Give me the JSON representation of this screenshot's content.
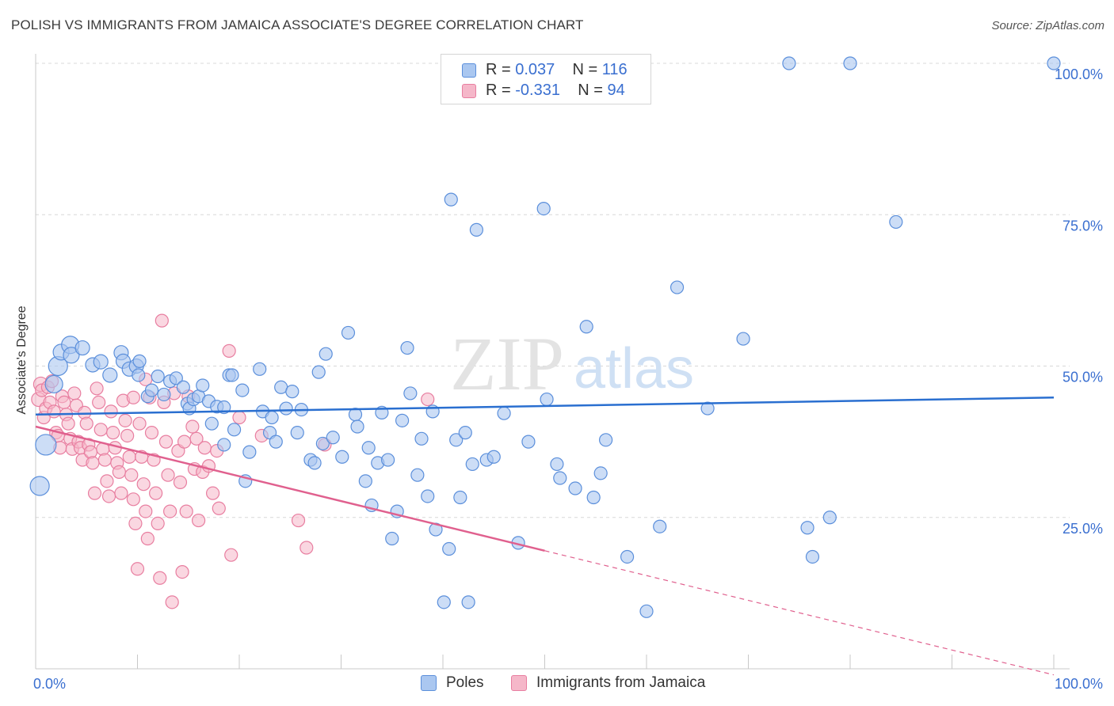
{
  "title": "POLISH VS IMMIGRANTS FROM JAMAICA ASSOCIATE'S DEGREE CORRELATION CHART",
  "source": "Source: ZipAtlas.com",
  "watermark": {
    "zip": "ZIP",
    "atlas": "atlas"
  },
  "colors": {
    "blue_fill": "#aac7f0",
    "blue_stroke": "#5b8fdb",
    "blue_line": "#2a6fd0",
    "pink_fill": "#f5b7c9",
    "pink_stroke": "#e87ea0",
    "pink_line": "#e0608e",
    "tick_label": "#3a6fd0",
    "grid": "#d8d8d8"
  },
  "legend": {
    "rows": [
      {
        "r_label": "R =",
        "r_value": "0.037",
        "n_label": "N =",
        "n_value": "116"
      },
      {
        "r_label": "R =",
        "r_value": "-0.331",
        "n_label": "N =",
        "n_value": "94"
      }
    ]
  },
  "bottom_legend": {
    "series1": "Poles",
    "series2": "Immigrants from Jamaica"
  },
  "chart_data": {
    "type": "scatter",
    "ylabel": "Associate's Degree",
    "xlim": [
      0,
      100
    ],
    "ylim": [
      0,
      100
    ],
    "x_tick_labels": [
      {
        "value": 0,
        "label": "0.0%"
      },
      {
        "value": 100,
        "label": "100.0%"
      }
    ],
    "y_tick_labels": [
      {
        "value": 25,
        "label": "25.0%"
      },
      {
        "value": 50,
        "label": "50.0%"
      },
      {
        "value": 75,
        "label": "75.0%"
      },
      {
        "value": 100,
        "label": "100.0%"
      }
    ],
    "grid": true,
    "series": [
      {
        "name": "Poles",
        "trend": [
          [
            0,
            42.0
          ],
          [
            100,
            44.8
          ]
        ],
        "points": [
          [
            0.4,
            30.2,
            12
          ],
          [
            1.0,
            37.0,
            13
          ],
          [
            1.8,
            47.0,
            11
          ],
          [
            2.2,
            50.0,
            12
          ],
          [
            2.5,
            52.3,
            10
          ],
          [
            3.4,
            53.5,
            11
          ],
          [
            3.5,
            51.8,
            10
          ],
          [
            4.6,
            53.0,
            9
          ],
          [
            5.6,
            50.2,
            9
          ],
          [
            6.4,
            50.7,
            9
          ],
          [
            7.3,
            48.5,
            9
          ],
          [
            8.4,
            52.2,
            9
          ],
          [
            8.6,
            50.8,
            9
          ],
          [
            9.2,
            49.5,
            9
          ],
          [
            9.9,
            50.0,
            9
          ],
          [
            10.1,
            48.5,
            8
          ],
          [
            10.2,
            50.8,
            8
          ],
          [
            11.0,
            45.0,
            8
          ],
          [
            11.4,
            46.0,
            8
          ],
          [
            12.0,
            48.3,
            8
          ],
          [
            12.6,
            45.3,
            8
          ],
          [
            13.2,
            47.5,
            8
          ],
          [
            13.8,
            48.0,
            8
          ],
          [
            14.5,
            46.5,
            8
          ],
          [
            14.9,
            43.8,
            8
          ],
          [
            15.1,
            43.0,
            8
          ],
          [
            15.5,
            44.5,
            8
          ],
          [
            16.0,
            45.0,
            8
          ],
          [
            16.4,
            46.8,
            8
          ],
          [
            17.0,
            44.2,
            8
          ],
          [
            17.3,
            40.5,
            8
          ],
          [
            17.8,
            43.3,
            8
          ],
          [
            18.5,
            43.2,
            8
          ],
          [
            18.5,
            37.0,
            8
          ],
          [
            19.0,
            48.5,
            8
          ],
          [
            19.3,
            48.5,
            8
          ],
          [
            19.5,
            39.5,
            8
          ],
          [
            20.3,
            46.0,
            8
          ],
          [
            20.6,
            31.0,
            8
          ],
          [
            21.0,
            35.8,
            8
          ],
          [
            22.0,
            49.5,
            8
          ],
          [
            22.3,
            42.5,
            8
          ],
          [
            23.0,
            39.0,
            8
          ],
          [
            23.2,
            41.5,
            8
          ],
          [
            23.6,
            37.5,
            8
          ],
          [
            24.1,
            46.5,
            8
          ],
          [
            24.6,
            43.0,
            8
          ],
          [
            25.2,
            45.8,
            8
          ],
          [
            25.7,
            39.0,
            8
          ],
          [
            26.1,
            42.8,
            8
          ],
          [
            27.0,
            34.5,
            8
          ],
          [
            27.4,
            34.0,
            8
          ],
          [
            27.8,
            49.0,
            8
          ],
          [
            28.2,
            37.2,
            8
          ],
          [
            28.5,
            52.0,
            8
          ],
          [
            29.2,
            38.2,
            8
          ],
          [
            30.1,
            35.0,
            8
          ],
          [
            30.7,
            55.5,
            8
          ],
          [
            31.4,
            42.0,
            8
          ],
          [
            31.6,
            40.0,
            8
          ],
          [
            32.4,
            31.0,
            8
          ],
          [
            32.7,
            36.5,
            8
          ],
          [
            33.0,
            27.0,
            8
          ],
          [
            33.6,
            34.0,
            8
          ],
          [
            34.0,
            42.3,
            8
          ],
          [
            34.6,
            34.5,
            8
          ],
          [
            35.0,
            21.5,
            8
          ],
          [
            35.5,
            26.0,
            8
          ],
          [
            36.0,
            41.0,
            8
          ],
          [
            36.5,
            53.0,
            8
          ],
          [
            36.8,
            45.5,
            8
          ],
          [
            37.5,
            32.0,
            8
          ],
          [
            37.9,
            38.0,
            8
          ],
          [
            38.5,
            28.5,
            8
          ],
          [
            39.0,
            42.5,
            8
          ],
          [
            39.3,
            23.0,
            8
          ],
          [
            40.1,
            11.0,
            8
          ],
          [
            40.6,
            19.8,
            8
          ],
          [
            40.8,
            77.5,
            8
          ],
          [
            41.3,
            37.8,
            8
          ],
          [
            41.7,
            28.3,
            8
          ],
          [
            42.5,
            11.0,
            8
          ],
          [
            42.2,
            39.0,
            8
          ],
          [
            42.9,
            33.8,
            8
          ],
          [
            43.3,
            72.5,
            8
          ],
          [
            44.3,
            34.5,
            8
          ],
          [
            45.0,
            35.0,
            8
          ],
          [
            46.0,
            42.2,
            8
          ],
          [
            47.4,
            20.8,
            8
          ],
          [
            48.4,
            37.5,
            8
          ],
          [
            49.9,
            76.0,
            8
          ],
          [
            50.2,
            44.5,
            8
          ],
          [
            51.2,
            33.8,
            8
          ],
          [
            51.5,
            31.5,
            8
          ],
          [
            53.0,
            29.8,
            8
          ],
          [
            54.1,
            56.5,
            8
          ],
          [
            54.8,
            28.3,
            8
          ],
          [
            55.5,
            32.3,
            8
          ],
          [
            56.0,
            37.8,
            8
          ],
          [
            58.1,
            18.5,
            8
          ],
          [
            60.0,
            9.5,
            8
          ],
          [
            61.3,
            23.5,
            8
          ],
          [
            63.0,
            63.0,
            8
          ],
          [
            66.0,
            43.0,
            8
          ],
          [
            69.5,
            54.5,
            8
          ],
          [
            74.0,
            100,
            8
          ],
          [
            75.8,
            23.3,
            8
          ],
          [
            76.3,
            18.5,
            8
          ],
          [
            78.0,
            25.0,
            8
          ],
          [
            80.0,
            100,
            8
          ],
          [
            84.5,
            73.8,
            8
          ],
          [
            100.0,
            100,
            8
          ]
        ]
      },
      {
        "name": "Immigrants from Jamaica",
        "trend": [
          [
            0,
            40.0
          ],
          [
            50,
            19.5
          ]
        ],
        "trend_dashed": [
          [
            50,
            19.5
          ],
          [
            100,
            -1.0
          ]
        ],
        "points": [
          [
            0.3,
            44.5,
            9
          ],
          [
            0.5,
            47.0,
            9
          ],
          [
            0.6,
            46.0,
            8
          ],
          [
            0.8,
            41.5,
            8
          ],
          [
            1.0,
            43.0,
            8
          ],
          [
            1.2,
            46.5,
            8
          ],
          [
            1.4,
            44.0,
            8
          ],
          [
            1.6,
            47.5,
            8
          ],
          [
            1.8,
            42.5,
            8
          ],
          [
            2.0,
            39.0,
            8
          ],
          [
            2.2,
            38.5,
            8
          ],
          [
            2.4,
            36.5,
            8
          ],
          [
            2.6,
            45.0,
            8
          ],
          [
            2.8,
            44.0,
            8
          ],
          [
            3.0,
            42.0,
            8
          ],
          [
            3.2,
            40.5,
            8
          ],
          [
            3.4,
            38.0,
            8
          ],
          [
            3.6,
            36.3,
            8
          ],
          [
            3.8,
            45.5,
            8
          ],
          [
            4.0,
            43.5,
            8
          ],
          [
            4.2,
            37.5,
            8
          ],
          [
            4.4,
            36.5,
            8
          ],
          [
            4.6,
            34.5,
            8
          ],
          [
            4.8,
            42.3,
            8
          ],
          [
            5.0,
            40.5,
            8
          ],
          [
            5.2,
            37.0,
            8
          ],
          [
            5.4,
            35.8,
            8
          ],
          [
            5.6,
            34.0,
            8
          ],
          [
            5.8,
            29.0,
            8
          ],
          [
            6.0,
            46.3,
            8
          ],
          [
            6.2,
            44.0,
            8
          ],
          [
            6.4,
            39.5,
            8
          ],
          [
            6.6,
            36.3,
            8
          ],
          [
            6.8,
            34.5,
            8
          ],
          [
            7.0,
            31.0,
            8
          ],
          [
            7.2,
            28.5,
            8
          ],
          [
            7.4,
            42.5,
            8
          ],
          [
            7.6,
            39.0,
            8
          ],
          [
            7.8,
            36.5,
            8
          ],
          [
            8.0,
            34.0,
            8
          ],
          [
            8.2,
            32.5,
            8
          ],
          [
            8.4,
            29.0,
            8
          ],
          [
            8.6,
            44.3,
            8
          ],
          [
            8.8,
            41.0,
            8
          ],
          [
            9.0,
            38.5,
            8
          ],
          [
            9.2,
            35.0,
            8
          ],
          [
            9.4,
            32.0,
            8
          ],
          [
            9.6,
            28.0,
            8
          ],
          [
            9.8,
            24.0,
            8
          ],
          [
            10.0,
            16.5,
            8
          ],
          [
            10.2,
            40.5,
            8
          ],
          [
            10.4,
            35.0,
            8
          ],
          [
            10.6,
            30.5,
            8
          ],
          [
            10.8,
            26.0,
            8
          ],
          [
            11.0,
            21.5,
            8
          ],
          [
            11.2,
            44.8,
            8
          ],
          [
            11.4,
            39.0,
            8
          ],
          [
            11.6,
            34.5,
            8
          ],
          [
            11.8,
            29.0,
            8
          ],
          [
            12.0,
            24.0,
            8
          ],
          [
            12.2,
            15.0,
            8
          ],
          [
            12.4,
            57.5,
            8
          ],
          [
            12.6,
            44.0,
            8
          ],
          [
            12.8,
            37.5,
            8
          ],
          [
            13.0,
            32.0,
            8
          ],
          [
            13.2,
            26.0,
            8
          ],
          [
            13.4,
            11.0,
            8
          ],
          [
            13.6,
            45.5,
            8
          ],
          [
            14.0,
            36.0,
            8
          ],
          [
            14.2,
            30.8,
            8
          ],
          [
            14.4,
            16.0,
            8
          ],
          [
            14.6,
            37.5,
            8
          ],
          [
            14.8,
            26.0,
            8
          ],
          [
            15.0,
            45.0,
            8
          ],
          [
            15.4,
            40.0,
            8
          ],
          [
            15.6,
            33.0,
            8
          ],
          [
            15.8,
            38.0,
            8
          ],
          [
            16.0,
            24.5,
            8
          ],
          [
            16.4,
            32.5,
            8
          ],
          [
            16.6,
            36.5,
            8
          ],
          [
            17.0,
            33.5,
            8
          ],
          [
            17.4,
            29.0,
            8
          ],
          [
            17.8,
            36.0,
            8
          ],
          [
            18.0,
            26.5,
            8
          ],
          [
            19.0,
            52.5,
            8
          ],
          [
            19.2,
            18.8,
            8
          ],
          [
            20.0,
            41.5,
            8
          ],
          [
            22.2,
            38.5,
            8
          ],
          [
            25.8,
            24.5,
            8
          ],
          [
            26.6,
            20.0,
            8
          ],
          [
            28.4,
            37.0,
            8
          ],
          [
            38.5,
            44.5,
            8
          ],
          [
            10.8,
            47.8,
            8
          ],
          [
            9.6,
            44.8,
            8
          ]
        ]
      }
    ]
  }
}
